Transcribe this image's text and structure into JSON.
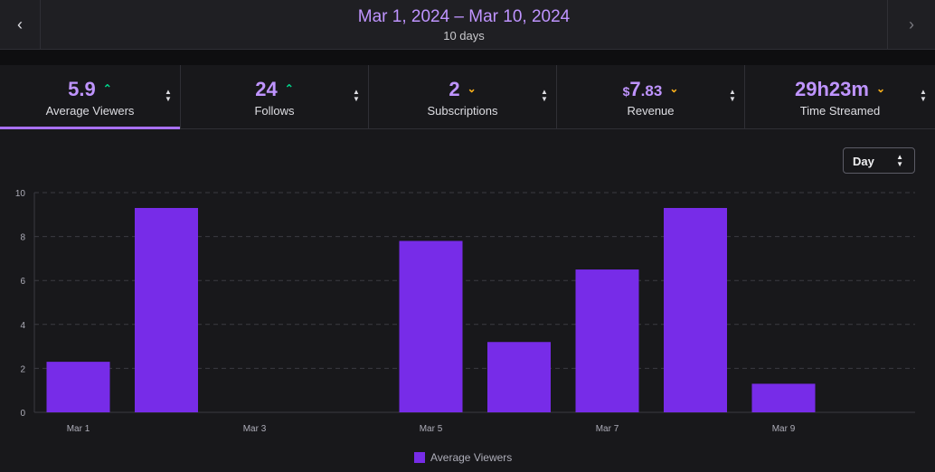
{
  "header": {
    "prev_icon": "chevron-left-icon",
    "next_icon": "chevron-right-icon",
    "range_title": "Mar 1, 2024 – Mar 10, 2024",
    "range_subtitle": "10 days"
  },
  "tabs": [
    {
      "value": "5.9",
      "label": "Average Viewers",
      "trend": "up",
      "active": true
    },
    {
      "value": "24",
      "label": "Follows",
      "trend": "up",
      "active": false
    },
    {
      "value": "2",
      "label": "Subscriptions",
      "trend": "down",
      "active": false
    },
    {
      "value_currency": "$",
      "value_main": "7",
      "value_cents": ".83",
      "label": "Revenue",
      "trend": "down",
      "active": false
    },
    {
      "value": "29h23m",
      "label": "Time Streamed",
      "trend": "down",
      "active": false
    }
  ],
  "granularity": {
    "selected": "Day"
  },
  "colors": {
    "accent": "#a970ff",
    "bar": "#772ce8",
    "up": "#00d48a",
    "down": "#ffb31a"
  },
  "chart_data": {
    "type": "bar",
    "categories": [
      "Mar 1",
      "Mar 2",
      "Mar 3",
      "Mar 4",
      "Mar 5",
      "Mar 6",
      "Mar 7",
      "Mar 8",
      "Mar 9",
      "Mar 10"
    ],
    "tick_labels": [
      "Mar 1",
      "Mar 3",
      "Mar 5",
      "Mar 7",
      "Mar 9"
    ],
    "y_ticks": [
      "0",
      "2",
      "4",
      "6",
      "8",
      "10"
    ],
    "series": [
      {
        "name": "Average Viewers",
        "values": [
          2.3,
          9.3,
          0,
          0,
          7.8,
          3.2,
          6.5,
          9.3,
          1.3,
          0
        ]
      }
    ],
    "ylim": [
      0,
      10
    ],
    "grid": true,
    "legend": "bottom-center"
  }
}
